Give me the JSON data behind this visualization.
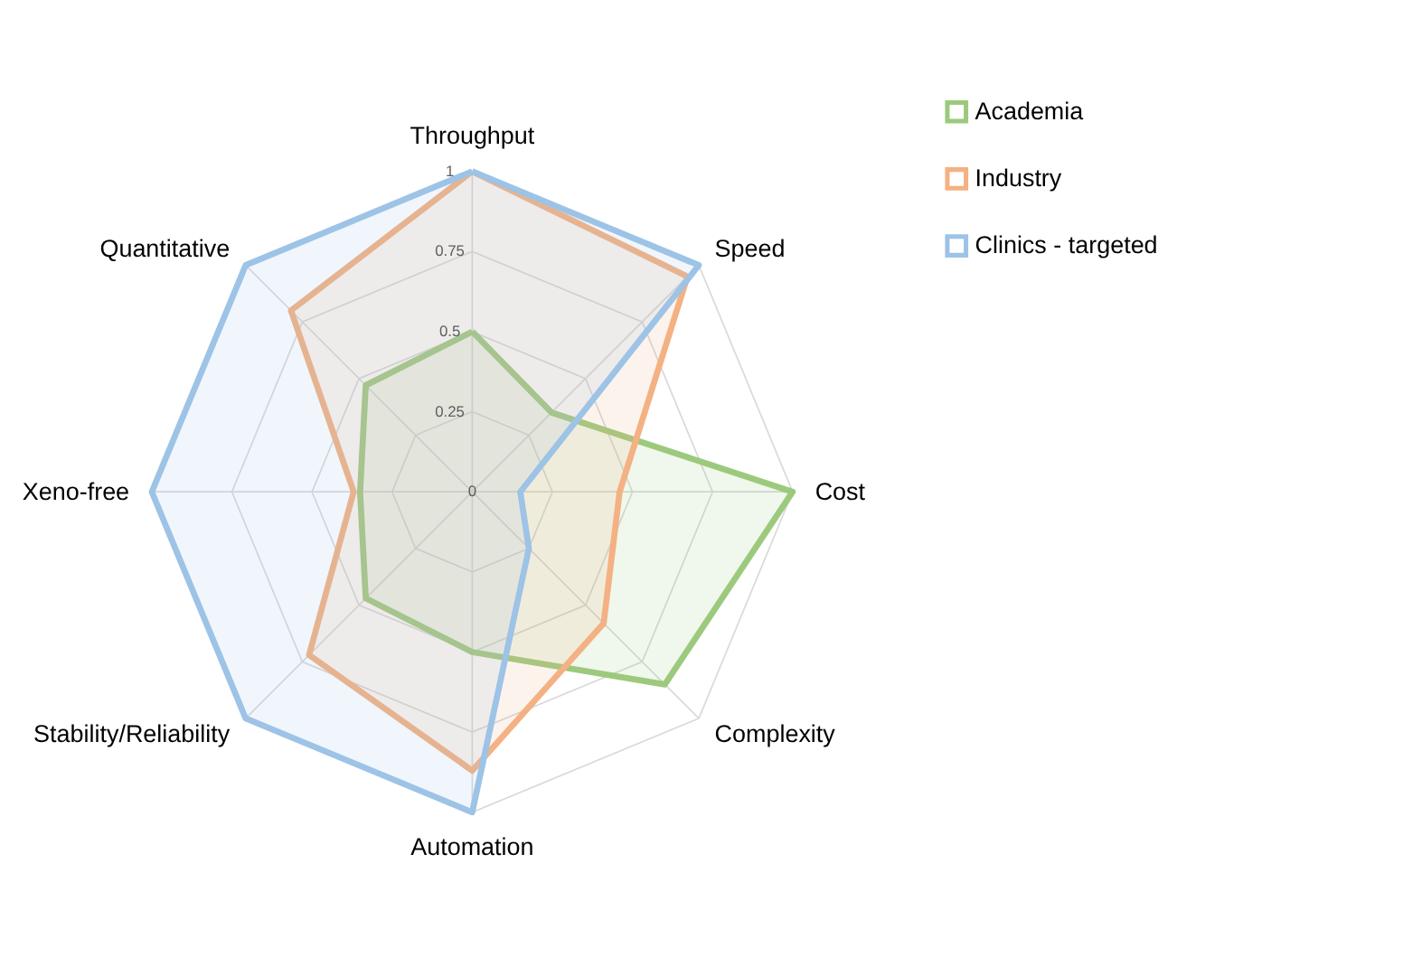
{
  "chart_data": {
    "type": "radar",
    "categories": [
      "Throughput",
      "Speed",
      "Cost",
      "Complexity",
      "Automation",
      "Stability/Reliability",
      "Xeno-free",
      "Quantitative"
    ],
    "series": [
      {
        "name": "Academia",
        "color": "#9dc97d",
        "values": [
          0.5,
          0.35,
          1,
          0.85,
          0.5,
          0.47,
          0.35,
          0.47
        ]
      },
      {
        "name": "Industry",
        "color": "#f4b183",
        "values": [
          1,
          0.95,
          0.46,
          0.58,
          0.87,
          0.72,
          0.37,
          0.8
        ]
      },
      {
        "name": "Clinics - targeted",
        "color": "#9dc3e6",
        "values": [
          1,
          1,
          0.15,
          0.25,
          1,
          1,
          1,
          1
        ]
      }
    ],
    "ylim": [
      0,
      1
    ],
    "yticks": [
      0,
      0.25,
      0.5,
      0.75,
      1
    ],
    "grid": true,
    "legend": "top right"
  }
}
